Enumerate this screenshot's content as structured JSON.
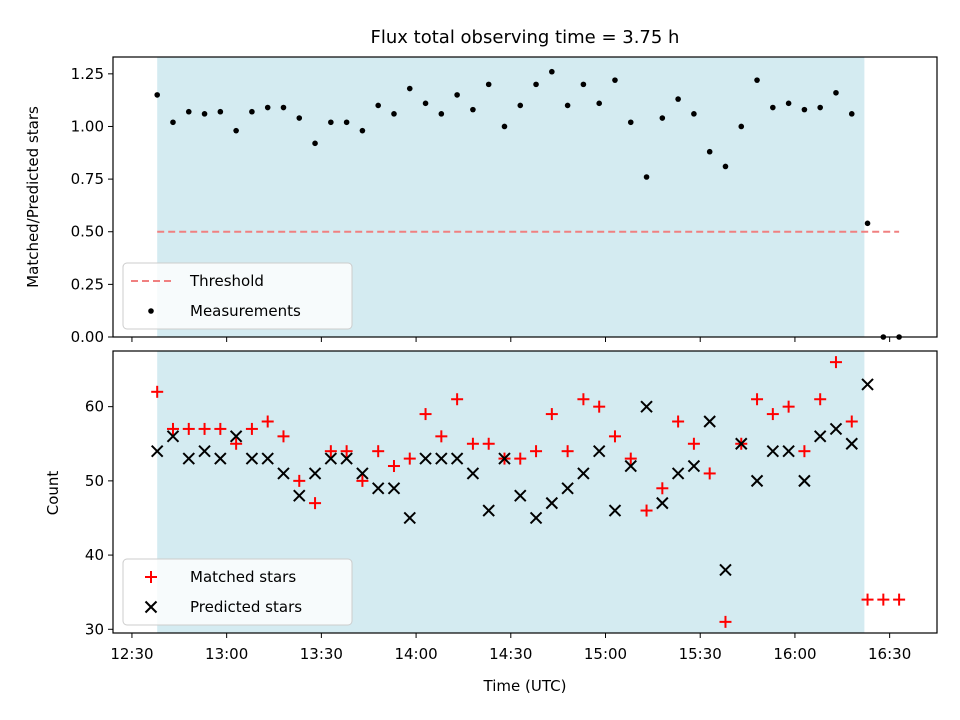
{
  "chart_data": [
    {
      "type": "scatter",
      "title": "Flux total observing time = 3.75 h",
      "ylabel": "Matched/Predicted stars",
      "xlim": [
        "12:24",
        "16:45"
      ],
      "ylim": [
        0,
        1.33
      ],
      "xticks": [
        "12:30",
        "13:00",
        "13:30",
        "14:00",
        "14:30",
        "15:00",
        "15:30",
        "16:00",
        "16:30"
      ],
      "yticks": [
        "0.00",
        "0.25",
        "0.50",
        "0.75",
        "1.00",
        "1.25"
      ],
      "shaded_interval": [
        "12:38",
        "16:22"
      ],
      "shaded_color": "#d4ebf1",
      "threshold": {
        "name": "Threshold",
        "y": 0.5,
        "x_range": [
          "12:38",
          "16:33"
        ],
        "color": "#f08080"
      },
      "series": [
        {
          "name": "Measurements",
          "color": "#000000",
          "x": [
            "12:38",
            "12:43",
            "12:48",
            "12:53",
            "12:58",
            "13:03",
            "13:08",
            "13:13",
            "13:18",
            "13:23",
            "13:28",
            "13:33",
            "13:38",
            "13:43",
            "13:48",
            "13:53",
            "13:58",
            "14:03",
            "14:08",
            "14:13",
            "14:18",
            "14:23",
            "14:28",
            "14:33",
            "14:38",
            "14:43",
            "14:48",
            "14:53",
            "14:58",
            "15:03",
            "15:08",
            "15:13",
            "15:18",
            "15:23",
            "15:28",
            "15:33",
            "15:38",
            "15:43",
            "15:48",
            "15:53",
            "15:58",
            "16:03",
            "16:08",
            "16:13",
            "16:18",
            "16:23",
            "16:28",
            "16:33"
          ],
          "y": [
            1.15,
            1.02,
            1.07,
            1.06,
            1.07,
            0.98,
            1.07,
            1.09,
            1.09,
            1.04,
            0.92,
            1.02,
            1.02,
            0.98,
            1.1,
            1.06,
            1.18,
            1.11,
            1.06,
            1.15,
            1.08,
            1.2,
            1.0,
            1.1,
            1.2,
            1.26,
            1.1,
            1.2,
            1.11,
            1.22,
            1.02,
            0.76,
            1.04,
            1.13,
            1.06,
            0.88,
            0.81,
            1.0,
            1.22,
            1.09,
            1.11,
            1.08,
            1.09,
            1.16,
            1.06,
            0.54,
            0.0,
            0.0
          ]
        }
      ],
      "legend": "lower-left"
    },
    {
      "type": "scatter",
      "xlabel": "Time (UTC)",
      "ylabel": "Count",
      "xlim": [
        "12:24",
        "16:45"
      ],
      "ylim": [
        29.5,
        67.5
      ],
      "xticks": [
        "12:30",
        "13:00",
        "13:30",
        "14:00",
        "14:30",
        "15:00",
        "15:30",
        "16:00",
        "16:30"
      ],
      "yticks": [
        "30",
        "40",
        "50",
        "60"
      ],
      "shaded_interval": [
        "12:38",
        "16:22"
      ],
      "series": [
        {
          "name": "Matched stars",
          "marker": "plus",
          "color": "#ff0000",
          "x": [
            "12:38",
            "12:43",
            "12:48",
            "12:53",
            "12:58",
            "13:03",
            "13:08",
            "13:13",
            "13:18",
            "13:23",
            "13:28",
            "13:33",
            "13:38",
            "13:43",
            "13:48",
            "13:53",
            "13:58",
            "14:03",
            "14:08",
            "14:13",
            "14:18",
            "14:23",
            "14:28",
            "14:33",
            "14:38",
            "14:43",
            "14:48",
            "14:53",
            "14:58",
            "15:03",
            "15:08",
            "15:13",
            "15:18",
            "15:23",
            "15:28",
            "15:33",
            "15:38",
            "15:43",
            "15:48",
            "15:53",
            "15:58",
            "16:03",
            "16:08",
            "16:13",
            "16:18",
            "16:23",
            "16:28",
            "16:33"
          ],
          "y": [
            62,
            57,
            57,
            57,
            57,
            55,
            57,
            58,
            56,
            50,
            47,
            54,
            54,
            50,
            54,
            52,
            53,
            59,
            56,
            61,
            55,
            55,
            53,
            53,
            54,
            59,
            54,
            61,
            60,
            56,
            53,
            46,
            49,
            58,
            55,
            51,
            31,
            55,
            61,
            59,
            60,
            54,
            61,
            66,
            58,
            34,
            34,
            34
          ]
        },
        {
          "name": "Predicted stars",
          "marker": "x",
          "color": "#000000",
          "x": [
            "12:38",
            "12:43",
            "12:48",
            "12:53",
            "12:58",
            "13:03",
            "13:08",
            "13:13",
            "13:18",
            "13:23",
            "13:28",
            "13:33",
            "13:38",
            "13:43",
            "13:48",
            "13:53",
            "13:58",
            "14:03",
            "14:08",
            "14:13",
            "14:18",
            "14:23",
            "14:28",
            "14:33",
            "14:38",
            "14:43",
            "14:48",
            "14:53",
            "14:58",
            "15:03",
            "15:08",
            "15:13",
            "15:18",
            "15:23",
            "15:28",
            "15:33",
            "15:38",
            "15:43",
            "15:48",
            "15:53",
            "15:58",
            "16:03",
            "16:08",
            "16:13",
            "16:18",
            "16:23"
          ],
          "y": [
            54,
            56,
            53,
            54,
            53,
            56,
            53,
            53,
            51,
            48,
            51,
            53,
            53,
            51,
            49,
            49,
            45,
            53,
            53,
            53,
            51,
            46,
            53,
            48,
            45,
            47,
            49,
            51,
            54,
            46,
            52,
            60,
            47,
            51,
            52,
            58,
            38,
            55,
            50,
            54,
            54,
            50,
            56,
            57,
            55,
            63
          ]
        }
      ],
      "legend": "lower-left"
    }
  ]
}
